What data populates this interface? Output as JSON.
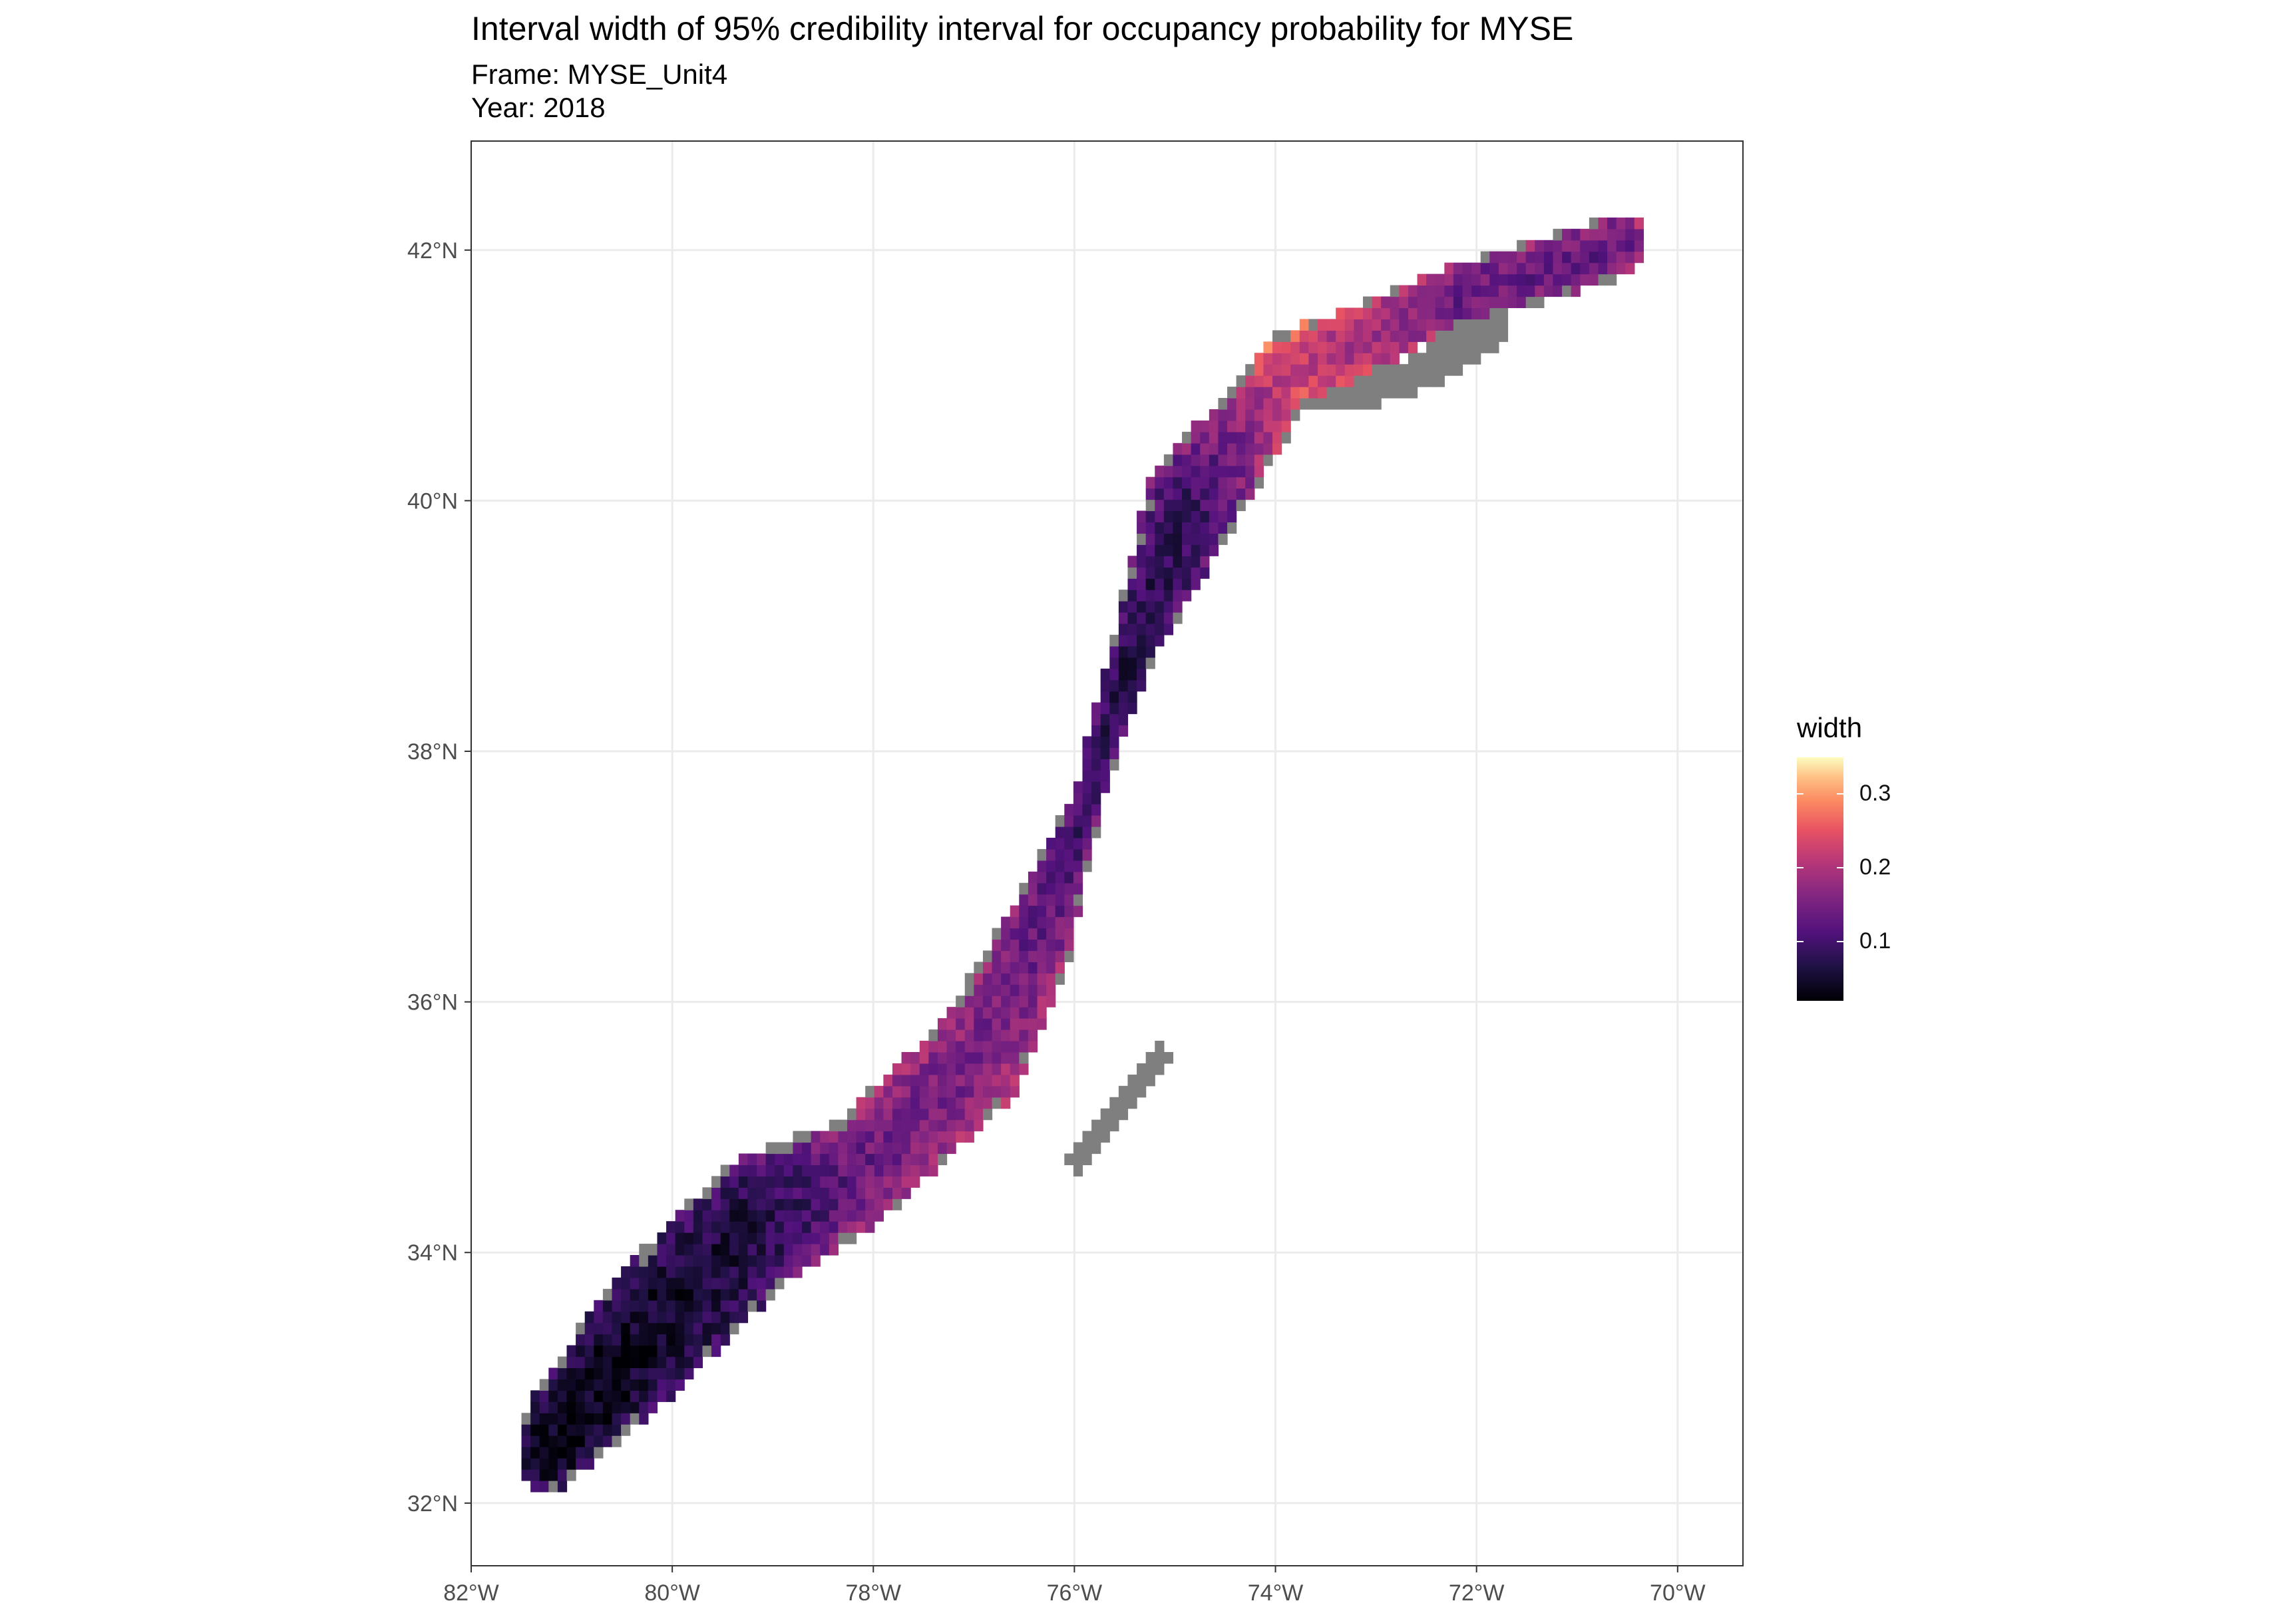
{
  "title": "Interval width of 95% credibility interval for occupancy probability for MYSE",
  "subtitle_frame": "Frame: MYSE_Unit4",
  "subtitle_year": "Year: 2018",
  "chart_data": {
    "type": "heatmap",
    "x_ticks": [
      "82°W",
      "80°W",
      "78°W",
      "76°W",
      "74°W",
      "72°W",
      "70°W"
    ],
    "x_tick_values": [
      -82,
      -80,
      -78,
      -76,
      -74,
      -72,
      -70
    ],
    "y_ticks": [
      "32°N",
      "34°N",
      "36°N",
      "38°N",
      "40°N",
      "42°N"
    ],
    "y_tick_values": [
      32,
      34,
      36,
      38,
      40,
      42
    ],
    "xlim": [
      -82,
      -69.35
    ],
    "ylim": [
      31.5,
      42.87
    ],
    "grid": true,
    "legend": {
      "title": "width",
      "placement": "right",
      "labels": [
        "0.3",
        "0.2",
        "0.1"
      ],
      "values": [
        0.3,
        0.2,
        0.1
      ],
      "range": [
        0.02,
        0.35
      ]
    },
    "colors": {
      "na": "#7f7f7f",
      "palette": [
        "#000004",
        "#1f1144",
        "#51127c",
        "#822681",
        "#b73779",
        "#e75263",
        "#fc8961",
        "#fec287",
        "#fcfdbf"
      ]
    },
    "segments": [
      {
        "path": [
          [
            -81.3,
            32.4
          ],
          [
            -80.3,
            33.3
          ],
          [
            -79.2,
            34.2
          ],
          [
            -78.2,
            34.6
          ],
          [
            -77.0,
            35.5
          ],
          [
            -76.4,
            36.5
          ],
          [
            -75.9,
            37.6
          ],
          [
            -75.5,
            38.7
          ],
          [
            -74.9,
            39.9
          ],
          [
            -73.9,
            41.0
          ],
          [
            -72.2,
            41.6
          ],
          [
            -70.6,
            42.0
          ]
        ],
        "half_width": [
          0.35,
          0.55,
          0.55,
          0.45,
          0.45,
          0.35,
          0.15,
          0.2,
          0.45,
          0.3,
          0.25,
          0.25
        ],
        "width_values": [
          0.03,
          0.04,
          0.06,
          0.12,
          0.14,
          0.12,
          0.08,
          0.06,
          0.08,
          0.2,
          0.12,
          0.12
        ]
      }
    ],
    "na_regions": [
      {
        "path": [
          [
            -73.9,
            40.8
          ],
          [
            -72.8,
            40.9
          ],
          [
            -71.9,
            41.3
          ]
        ],
        "half_width": 0.15
      },
      {
        "path": [
          [
            -75.2,
            35.5
          ],
          [
            -75.6,
            35.1
          ],
          [
            -76.0,
            34.7
          ]
        ],
        "half_width": 0.12
      }
    ]
  }
}
